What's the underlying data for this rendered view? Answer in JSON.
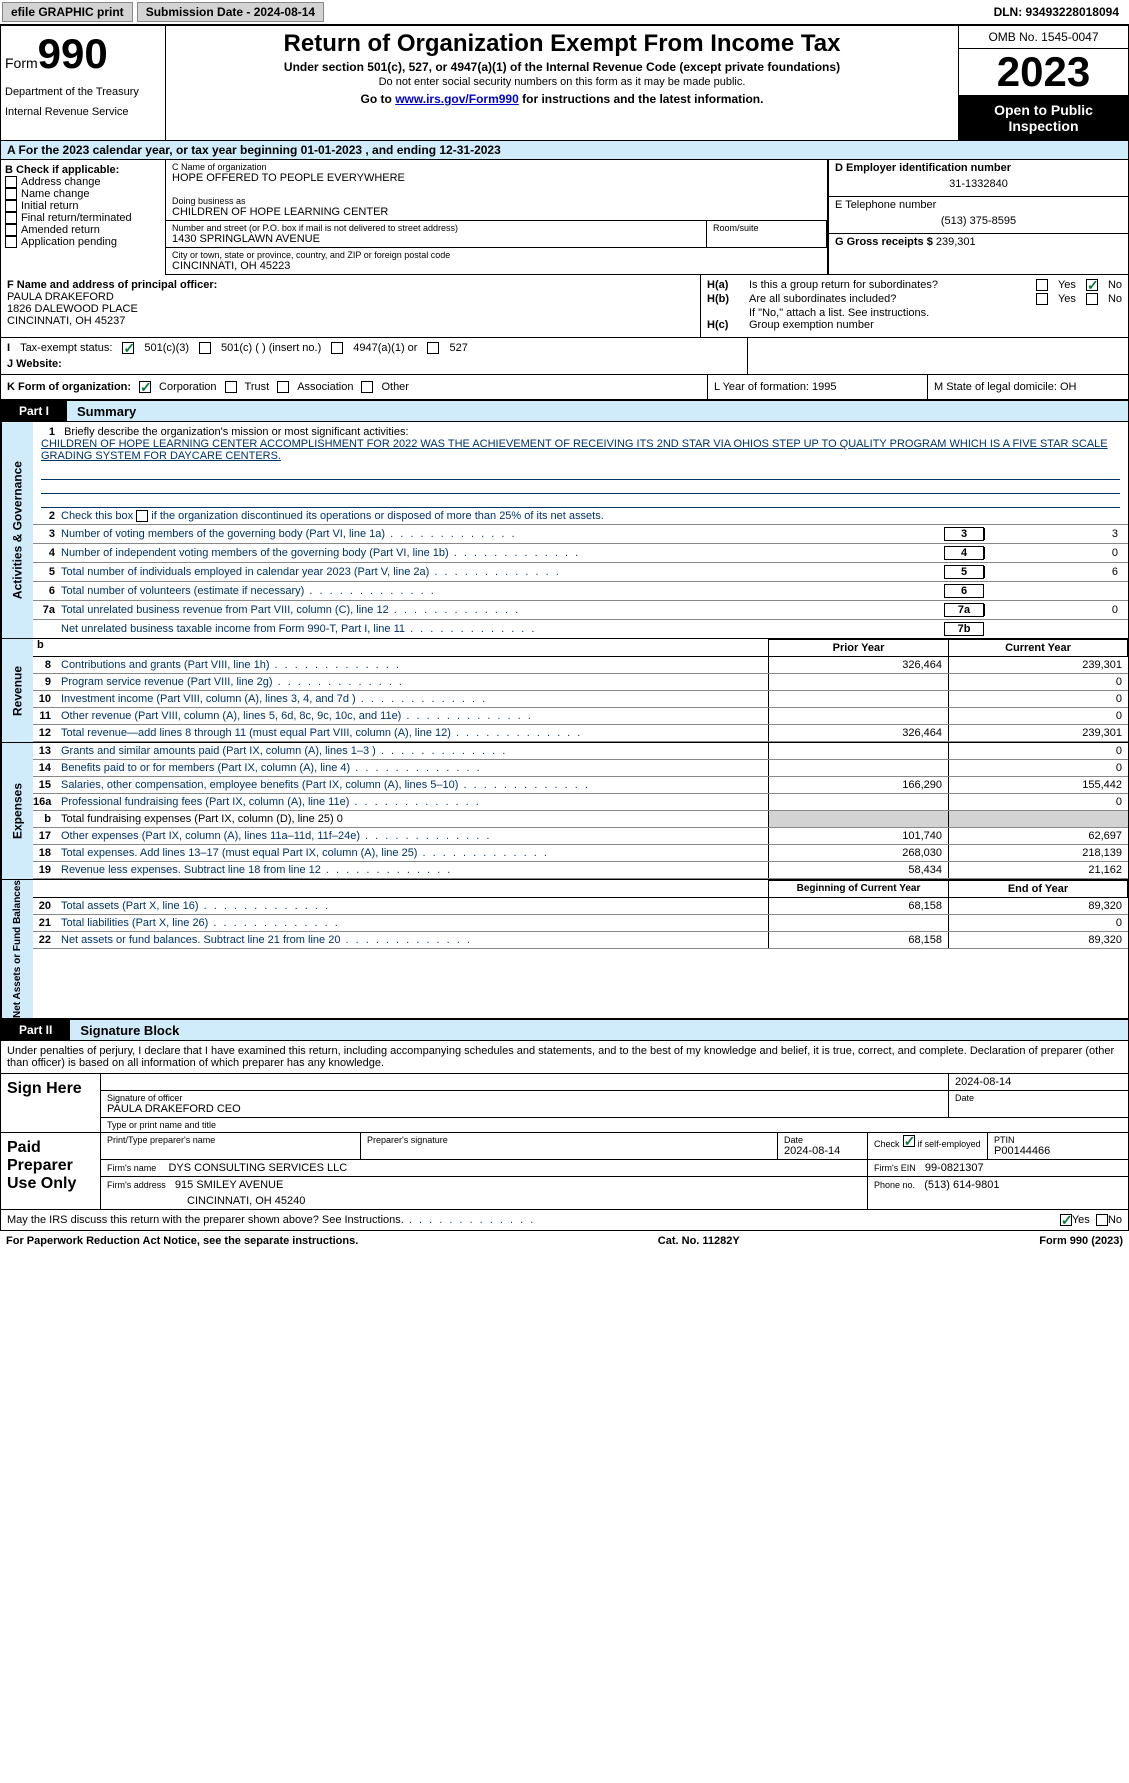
{
  "topbar": {
    "efile": "efile GRAPHIC print",
    "submission": "Submission Date - 2024-08-14",
    "dln": "DLN: 93493228018094"
  },
  "header": {
    "form_label": "Form",
    "form_num": "990",
    "dept": "Department of the Treasury",
    "irs": "Internal Revenue Service",
    "title": "Return of Organization Exempt From Income Tax",
    "sub": "Under section 501(c), 527, or 4947(a)(1) of the Internal Revenue Code (except private foundations)",
    "note": "Do not enter social security numbers on this form as it may be made public.",
    "link_pre": "Go to ",
    "link": "www.irs.gov/Form990",
    "link_post": " for instructions and the latest information.",
    "omb": "OMB No. 1545-0047",
    "year": "2023",
    "public": "Open to Public Inspection"
  },
  "section_a": "A   For the 2023 calendar year, or tax year beginning 01-01-2023   , and ending 12-31-2023",
  "col_b": {
    "label": "B Check if applicable:",
    "items": [
      "Address change",
      "Name change",
      "Initial return",
      "Final return/terminated",
      "Amended return",
      "Application pending"
    ]
  },
  "col_c": {
    "name_label": "C Name of organization",
    "name": "HOPE OFFERED TO PEOPLE EVERYWHERE",
    "dba_label": "Doing business as",
    "dba": "CHILDREN OF HOPE LEARNING CENTER",
    "street_label": "Number and street (or P.O. box if mail is not delivered to street address)",
    "street": "1430 SPRINGLAWN AVENUE",
    "room_label": "Room/suite",
    "city_label": "City or town, state or province, country, and ZIP or foreign postal code",
    "city": "CINCINNATI, OH  45223"
  },
  "col_d": {
    "ein_label": "D Employer identification number",
    "ein": "31-1332840",
    "phone_label": "E Telephone number",
    "phone": "(513) 375-8595",
    "gross_label": "G Gross receipts $",
    "gross": "239,301"
  },
  "row_f": {
    "label": "F  Name and address of principal officer:",
    "name": "PAULA DRAKEFORD",
    "street": "1826 DALEWOOD PLACE",
    "city": "CINCINNATI, OH  45237"
  },
  "row_h": {
    "ha": "Is this a group return for subordinates?",
    "hb": "Are all subordinates included?",
    "hb_note": "If \"No,\" attach a list. See instructions.",
    "hc": "Group exemption number",
    "yes": "Yes",
    "no": "No"
  },
  "row_i": {
    "label": "Tax-exempt status:",
    "o1": "501(c)(3)",
    "o2": "501(c) (  ) (insert no.)",
    "o3": "4947(a)(1) or",
    "o4": "527"
  },
  "row_j": {
    "label": "J   Website:"
  },
  "row_k": {
    "label": "K Form of organization:",
    "o1": "Corporation",
    "o2": "Trust",
    "o3": "Association",
    "o4": "Other",
    "l": "L Year of formation: 1995",
    "m": "M State of legal domicile: OH"
  },
  "part1": {
    "tab": "Part I",
    "title": "Summary"
  },
  "mission": {
    "label": "Briefly describe the organization's mission or most significant activities:",
    "text": "CHILDREN OF HOPE LEARNING CENTER ACCOMPLISHMENT FOR 2022 WAS THE ACHIEVEMENT OF RECEIVING ITS 2ND STAR VIA OHIOS STEP UP TO QUALITY PROGRAM WHICH IS A FIVE STAR SCALE GRADING SYSTEM FOR DAYCARE CENTERS."
  },
  "gov_lines": {
    "l2": "Check this box     if the organization discontinued its operations or disposed of more than 25% of its net assets.",
    "l3": {
      "t": "Number of voting members of the governing body (Part VI, line 1a)",
      "n": "3",
      "v": "3"
    },
    "l4": {
      "t": "Number of independent voting members of the governing body (Part VI, line 1b)",
      "n": "4",
      "v": "0"
    },
    "l5": {
      "t": "Total number of individuals employed in calendar year 2023 (Part V, line 2a)",
      "n": "5",
      "v": "6"
    },
    "l6": {
      "t": "Total number of volunteers (estimate if necessary)",
      "n": "6",
      "v": ""
    },
    "l7a": {
      "t": "Total unrelated business revenue from Part VIII, column (C), line 12",
      "n": "7a",
      "v": "0"
    },
    "l7b": {
      "t": "Net unrelated business taxable income from Form 990-T, Part I, line 11",
      "n": "7b",
      "v": ""
    }
  },
  "headers2": {
    "prior": "Prior Year",
    "current": "Current Year",
    "boy": "Beginning of Current Year",
    "eoy": "End of Year"
  },
  "revenue": [
    {
      "n": "8",
      "t": "Contributions and grants (Part VIII, line 1h)",
      "p": "326,464",
      "c": "239,301"
    },
    {
      "n": "9",
      "t": "Program service revenue (Part VIII, line 2g)",
      "p": "",
      "c": "0"
    },
    {
      "n": "10",
      "t": "Investment income (Part VIII, column (A), lines 3, 4, and 7d )",
      "p": "",
      "c": "0"
    },
    {
      "n": "11",
      "t": "Other revenue (Part VIII, column (A), lines 5, 6d, 8c, 9c, 10c, and 11e)",
      "p": "",
      "c": "0"
    },
    {
      "n": "12",
      "t": "Total revenue—add lines 8 through 11 (must equal Part VIII, column (A), line 12)",
      "p": "326,464",
      "c": "239,301"
    }
  ],
  "expenses": [
    {
      "n": "13",
      "t": "Grants and similar amounts paid (Part IX, column (A), lines 1–3 )",
      "p": "",
      "c": "0"
    },
    {
      "n": "14",
      "t": "Benefits paid to or for members (Part IX, column (A), line 4)",
      "p": "",
      "c": "0"
    },
    {
      "n": "15",
      "t": "Salaries, other compensation, employee benefits (Part IX, column (A), lines 5–10)",
      "p": "166,290",
      "c": "155,442"
    },
    {
      "n": "16a",
      "t": "Professional fundraising fees (Part IX, column (A), line 11e)",
      "p": "",
      "c": "0"
    },
    {
      "n": "b",
      "t": "Total fundraising expenses (Part IX, column (D), line 25) 0",
      "p": "grey",
      "c": "grey"
    },
    {
      "n": "17",
      "t": "Other expenses (Part IX, column (A), lines 11a–11d, 11f–24e)",
      "p": "101,740",
      "c": "62,697"
    },
    {
      "n": "18",
      "t": "Total expenses. Add lines 13–17 (must equal Part IX, column (A), line 25)",
      "p": "268,030",
      "c": "218,139"
    },
    {
      "n": "19",
      "t": "Revenue less expenses. Subtract line 18 from line 12",
      "p": "58,434",
      "c": "21,162"
    }
  ],
  "netassets": [
    {
      "n": "20",
      "t": "Total assets (Part X, line 16)",
      "p": "68,158",
      "c": "89,320"
    },
    {
      "n": "21",
      "t": "Total liabilities (Part X, line 26)",
      "p": "",
      "c": "0"
    },
    {
      "n": "22",
      "t": "Net assets or fund balances. Subtract line 21 from line 20",
      "p": "68,158",
      "c": "89,320"
    }
  ],
  "vlabels": {
    "gov": "Activities & Governance",
    "rev": "Revenue",
    "exp": "Expenses",
    "net": "Net Assets or Fund Balances"
  },
  "part2": {
    "tab": "Part II",
    "title": "Signature Block"
  },
  "perjury": "Under penalties of perjury, I declare that I have examined this return, including accompanying schedules and statements, and to the best of my knowledge and belief, it is true, correct, and complete. Declaration of preparer (other than officer) is based on all information of which preparer has any knowledge.",
  "sign": {
    "here": "Sign Here",
    "sig_label": "Signature of officer",
    "date_label": "Date",
    "date": "2024-08-14",
    "name": "PAULA DRAKEFORD CEO",
    "type_label": "Type or print name and title"
  },
  "paid": {
    "label": "Paid Preparer Use Only",
    "print_label": "Print/Type preparer's name",
    "sig_label": "Preparer's signature",
    "date_label": "Date",
    "date": "2024-08-14",
    "check_label": "Check",
    "self_emp": "if self-employed",
    "ptin_label": "PTIN",
    "ptin": "P00144466",
    "firm_name_label": "Firm's name",
    "firm_name": "DYS CONSULTING SERVICES LLC",
    "firm_ein_label": "Firm's EIN",
    "firm_ein": "99-0821307",
    "firm_addr_label": "Firm's address",
    "firm_addr": "915 SMILEY AVENUE",
    "firm_city": "CINCINNATI, OH  45240",
    "phone_label": "Phone no.",
    "phone": "(513) 614-9801"
  },
  "discuss": "May the IRS discuss this return with the preparer shown above? See Instructions.",
  "footer": {
    "left": "For Paperwork Reduction Act Notice, see the separate instructions.",
    "mid": "Cat. No. 11282Y",
    "right": "Form 990 (2023)"
  }
}
